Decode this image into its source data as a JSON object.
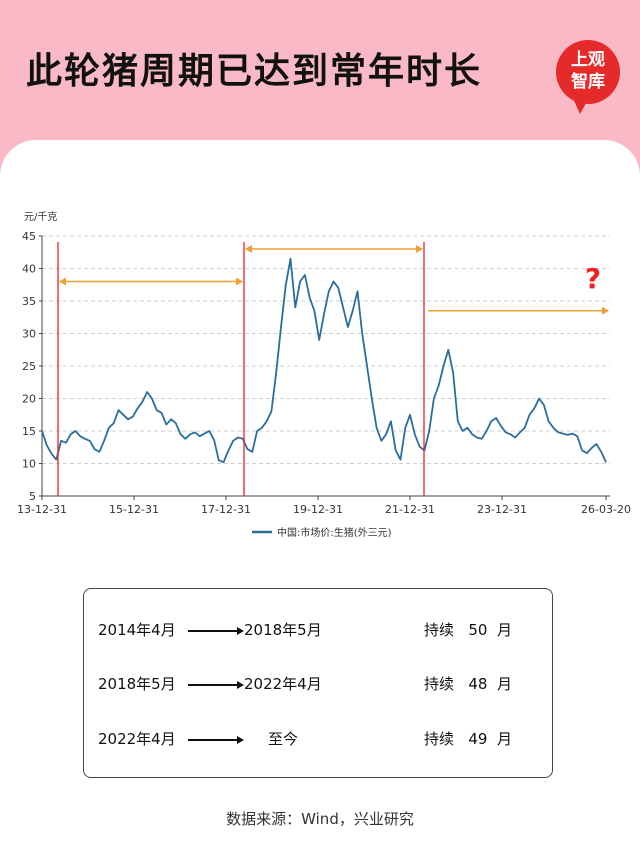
{
  "title": "此轮猪周期已达到常年时长",
  "logo": {
    "line1": "上观",
    "line2": "智库"
  },
  "chart_data": {
    "type": "line",
    "ylabel": "元/千克",
    "ylim": [
      5,
      45
    ],
    "yticks": [
      5,
      10,
      15,
      20,
      25,
      30,
      35,
      40,
      45
    ],
    "x_tick_labels": [
      "13-12-31",
      "15-12-31",
      "17-12-31",
      "19-12-31",
      "21-12-31",
      "23-12-31",
      "26-03-20"
    ],
    "series": [
      {
        "name": "中国:市场价:生猪(外三元)",
        "color": "#2a6e9c",
        "values": [
          15.0,
          12.8,
          11.5,
          10.6,
          13.5,
          13.2,
          14.5,
          15.0,
          14.2,
          13.8,
          13.5,
          12.2,
          11.8,
          13.5,
          15.5,
          16.2,
          18.2,
          17.5,
          16.8,
          17.2,
          18.5,
          19.5,
          21.0,
          20.0,
          18.2,
          17.8,
          16.0,
          16.8,
          16.2,
          14.5,
          13.8,
          14.5,
          14.8,
          14.2,
          14.6,
          15.0,
          13.6,
          10.5,
          10.2,
          12.0,
          13.5,
          14.0,
          13.8,
          12.2,
          11.8,
          15.0,
          15.5,
          16.5,
          18.0,
          24.0,
          31.0,
          37.5,
          41.5,
          34.0,
          38.0,
          39.0,
          35.5,
          33.5,
          29.0,
          33.0,
          36.5,
          38.0,
          37.0,
          34.0,
          31.0,
          33.5,
          36.5,
          30.0,
          25.0,
          20.0,
          15.5,
          13.5,
          14.5,
          16.5,
          12.0,
          10.6,
          15.5,
          17.5,
          14.5,
          12.6,
          12.0,
          15.0,
          20.0,
          22.0,
          25.0,
          27.5,
          24.0,
          16.5,
          15.0,
          15.5,
          14.5,
          14.0,
          13.8,
          15.0,
          16.5,
          17.0,
          15.8,
          14.8,
          14.5,
          14.0,
          14.8,
          15.5,
          17.5,
          18.5,
          20.0,
          19.0,
          16.5,
          15.5,
          14.8,
          14.6,
          14.4,
          14.6,
          14.2,
          12.0,
          11.6,
          12.4,
          13.0,
          11.8,
          10.2
        ]
      }
    ],
    "cycle_markers": [
      {
        "from": "2014年4月",
        "to": "2018年5月",
        "y": 38
      },
      {
        "from": "2018年5月",
        "to": "2022年4月",
        "y": 43
      },
      {
        "from": "2022年4月",
        "to": "至今",
        "y": 33.5
      }
    ],
    "question_mark": "?",
    "legend": "bottom-center",
    "grid": true
  },
  "table": {
    "rows": [
      {
        "start": "2014年4月",
        "end": "2018年5月",
        "dur_label": "持续",
        "months": "50",
        "unit": "月"
      },
      {
        "start": "2018年5月",
        "end": "2022年4月",
        "dur_label": "持续",
        "months": "48",
        "unit": "月"
      },
      {
        "start": "2022年4月",
        "end": "至今",
        "dur_label": "持续",
        "months": "49",
        "unit": "月"
      }
    ]
  },
  "source": "数据来源：Wind，兴业研究"
}
